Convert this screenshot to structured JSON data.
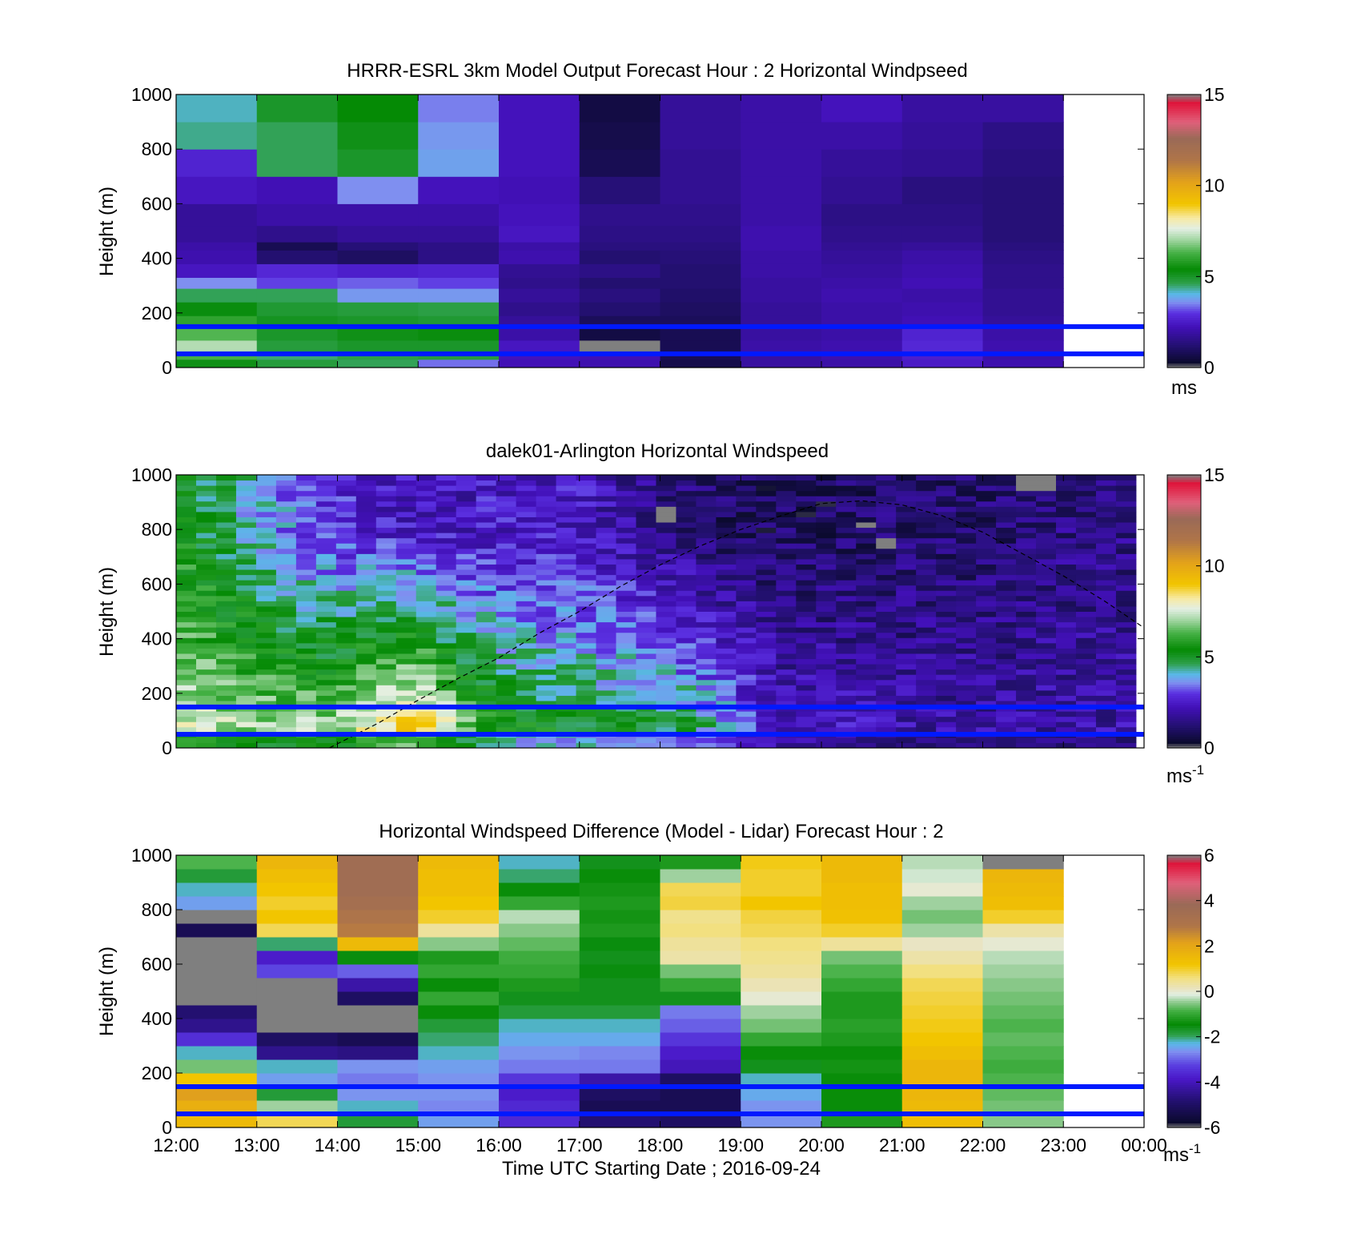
{
  "figure": {
    "xlabel": "Time UTC  Starting Date ; 2016-09-24",
    "xticks": [
      "12:00",
      "13:00",
      "14:00",
      "15:00",
      "16:00",
      "17:00",
      "18:00",
      "19:00",
      "20:00",
      "21:00",
      "22:00",
      "23:00",
      "00:00"
    ]
  },
  "chart_data": [
    {
      "type": "heatmap",
      "title": "HRRR-ESRL 3km Model Output   Forecast Hour : 2 Horizontal Windpseed",
      "ylabel": "Height (m)",
      "ylim": [
        0,
        1000
      ],
      "yticks": [
        "0",
        "200",
        "400",
        "600",
        "800",
        "1000"
      ],
      "colorbar": {
        "min": 0,
        "max": 15,
        "ticks": [
          "0",
          "5",
          "10",
          "15"
        ],
        "unit": "ms",
        "unit_sup": ""
      },
      "grid": false,
      "reference_lines_m": [
        50,
        150
      ],
      "reference_line_color": "#0019ff",
      "hours": [
        "12:00",
        "13:00",
        "14:00",
        "15:00",
        "16:00",
        "17:00",
        "18:00",
        "19:00",
        "20:00",
        "21:00",
        "22:00"
      ],
      "heights_m": [
        0,
        30,
        60,
        100,
        150,
        190,
        240,
        290,
        330,
        380,
        430,
        460,
        520,
        600,
        700,
        800,
        900,
        1000
      ],
      "values": [
        [
          5.2,
          6.3,
          7.2,
          6.4,
          6.0,
          5.3,
          4.6,
          3.6,
          2.4,
          2.1,
          2.0,
          1.8,
          1.8,
          2.4,
          2.7,
          4.4,
          4.2
        ],
        [
          4.8,
          4.5,
          4.8,
          5.0,
          5.1,
          4.9,
          4.6,
          3.1,
          2.8,
          1.2,
          0.8,
          1.6,
          2.0,
          2.2,
          4.6,
          4.6,
          5.0
        ],
        [
          4.6,
          4.7,
          5.0,
          5.2,
          5.0,
          4.8,
          3.7,
          3.3,
          2.6,
          1.0,
          1.3,
          1.8,
          2.0,
          3.6,
          5.0,
          5.2,
          5.4
        ],
        [
          3.4,
          4.8,
          5.0,
          5.3,
          4.9,
          4.7,
          3.7,
          3.1,
          2.7,
          1.5,
          1.5,
          1.8,
          2.0,
          2.3,
          3.8,
          3.7,
          3.5
        ],
        [
          2.2,
          2.3,
          2.4,
          2.0,
          1.8,
          1.6,
          1.8,
          1.6,
          1.7,
          2.1,
          2.0,
          2.4,
          2.3,
          2.2,
          2.3,
          2.3,
          2.3
        ],
        [
          2.1,
          2.2,
          0.0,
          0.6,
          0.9,
          1.2,
          1.4,
          1.2,
          1.5,
          1.2,
          1.4,
          1.5,
          1.6,
          1.3,
          0.8,
          0.7,
          0.6
        ],
        [
          0.7,
          0.8,
          0.8,
          0.8,
          0.9,
          1.0,
          1.1,
          1.2,
          1.2,
          1.3,
          1.4,
          1.5,
          1.6,
          1.7,
          1.7,
          1.8,
          1.8
        ],
        [
          1.9,
          1.9,
          2.0,
          1.9,
          1.8,
          1.8,
          1.9,
          1.9,
          2.0,
          2.0,
          2.1,
          2.1,
          2.0,
          2.0,
          2.0,
          2.0,
          2.0
        ],
        [
          2.0,
          2.1,
          2.1,
          2.0,
          2.0,
          2.0,
          2.1,
          2.0,
          1.9,
          1.8,
          1.7,
          1.6,
          1.5,
          1.7,
          1.8,
          2.0,
          2.3
        ],
        [
          2.5,
          2.6,
          2.8,
          2.7,
          2.2,
          2.1,
          2.0,
          2.2,
          2.1,
          2.0,
          1.8,
          1.6,
          1.5,
          1.4,
          1.7,
          1.8,
          1.9
        ],
        [
          2.1,
          2.0,
          2.1,
          2.0,
          1.8,
          1.7,
          1.7,
          1.6,
          1.6,
          1.5,
          1.4,
          1.3,
          1.3,
          1.3,
          1.4,
          1.5,
          1.9
        ]
      ]
    },
    {
      "type": "heatmap",
      "title": "dalek01-Arlington  Horizontal Windspeed",
      "ylabel": "Height (m)",
      "ylim": [
        0,
        1000
      ],
      "yticks": [
        "0",
        "200",
        "400",
        "600",
        "800",
        "1000"
      ],
      "colorbar": {
        "min": 0,
        "max": 15,
        "ticks": [
          "0",
          "5",
          "10",
          "15"
        ],
        "unit": "ms",
        "unit_sup": "-1"
      },
      "grid": false,
      "reference_lines_m": [
        50,
        150
      ],
      "reference_line_color": "#0019ff",
      "x_range_hours": [
        12,
        23.9
      ],
      "n_time_bins": 48,
      "n_height_bins": 52,
      "profile_anchor_hours": [
        12,
        13,
        14,
        14.6,
        15,
        15.5,
        16,
        17,
        18,
        18.5,
        19,
        19.5,
        20,
        21,
        22,
        23
      ],
      "profile_anchor_low_ms": [
        7.5,
        7.0,
        7.0,
        8.5,
        9.0,
        7.0,
        5.5,
        5.2,
        5.0,
        4.5,
        3.5,
        2.5,
        2.5,
        2.0,
        2.0,
        2.0
      ],
      "profile_anchor_high_ms": [
        5.5,
        4.0,
        2.8,
        2.5,
        2.4,
        2.3,
        2.5,
        2.4,
        1.5,
        1.2,
        1.0,
        1.0,
        1.0,
        1.2,
        1.2,
        1.5
      ],
      "missing_regions": [
        {
          "hour_range": [
            18.0,
            18.3
          ],
          "height_range": [
            820,
            880
          ]
        },
        {
          "hour_range": [
            18.9,
            19.0
          ],
          "height_range": [
            870,
            890
          ]
        },
        {
          "hour_range": [
            20.4,
            20.6
          ],
          "height_range": [
            810,
            830
          ]
        },
        {
          "hour_range": [
            20.7,
            20.9
          ],
          "height_range": [
            730,
            760
          ]
        },
        {
          "hour_range": [
            22.3,
            22.8
          ],
          "height_range": [
            950,
            1000
          ]
        },
        {
          "hour_range": [
            13.9,
            14.1
          ],
          "height_range": [
            740,
            760
          ]
        }
      ],
      "overlay_curve": {
        "style": "dashed",
        "hours": [
          13.9,
          14.5,
          15.0,
          15.5,
          16.0,
          16.5,
          17.0,
          17.5,
          18.0,
          18.5,
          19.0,
          19.5,
          20.0,
          20.5,
          21.0,
          21.5,
          22.0,
          22.5,
          23.0,
          23.5,
          24.0
        ],
        "heights_m": [
          0,
          90,
          175,
          255,
          330,
          420,
          500,
          590,
          670,
          740,
          800,
          850,
          895,
          905,
          890,
          850,
          790,
          710,
          630,
          540,
          440
        ]
      }
    },
    {
      "type": "heatmap",
      "title": "Horizontal Windspeed Difference (Model - Lidar) Forecast Hour : 2",
      "ylabel": "Height (m)",
      "ylim": [
        0,
        1000
      ],
      "yticks": [
        "0",
        "200",
        "400",
        "600",
        "800",
        "1000"
      ],
      "colorbar": {
        "min": -6,
        "max": 6,
        "ticks": [
          "-6",
          "-4",
          "-2",
          "0",
          "2",
          "4",
          "6"
        ],
        "unit": "ms",
        "unit_sup": "-1"
      },
      "grid": false,
      "reference_lines_m": [
        50,
        150
      ],
      "reference_line_color": "#0019ff",
      "hours": [
        "12:00",
        "13:00",
        "14:00",
        "15:00",
        "16:00",
        "17:00",
        "18:00",
        "19:00",
        "20:00",
        "21:00",
        "22:00"
      ],
      "heights_m": [
        0,
        50,
        100,
        150,
        200,
        250,
        300,
        350,
        400,
        450,
        500,
        550,
        600,
        650,
        700,
        750,
        800,
        850,
        900,
        950,
        1000
      ],
      "values": [
        [
          1.5,
          1.8,
          2.2,
          1.2,
          -0.6,
          -2.2,
          -3.5,
          -4.5,
          -4.8,
          "na",
          "na",
          "na",
          "na",
          "na",
          -5.2,
          "na",
          -2.5,
          -2.2,
          -1.8,
          -0.8
        ],
        [
          0.8,
          -0.4,
          -1.8,
          -2.5,
          -2.2,
          -4.5,
          -5.0,
          "na",
          "na",
          "na",
          "na",
          -3.2,
          -3.8,
          -2.0,
          0.8,
          1.2,
          1.0,
          1.2,
          1.4,
          1.6
        ],
        [
          -1.8,
          -2.2,
          -2.6,
          -2.8,
          -2.6,
          -4.6,
          -5.2,
          "na",
          "na",
          -5.0,
          -4.2,
          -3.0,
          -1.5,
          1.5,
          2.8,
          3.0,
          3.4,
          3.6,
          3.6,
          3.6
        ],
        [
          -2.5,
          -2.7,
          -2.6,
          -2.6,
          -2.5,
          -2.2,
          -2.0,
          -1.8,
          -1.4,
          -1.0,
          -1.4,
          -1.0,
          -1.2,
          -0.5,
          0.4,
          1.0,
          1.2,
          1.4,
          1.4,
          1.5
        ],
        [
          -3.6,
          -3.6,
          -3.8,
          -3.4,
          -2.8,
          -2.6,
          -2.4,
          -2.2,
          -1.8,
          -1.6,
          -1.2,
          -1.0,
          -0.9,
          -0.7,
          -0.5,
          -0.3,
          -1.0,
          -1.4,
          -2.0,
          -2.2
        ],
        [
          -4.8,
          -5.2,
          -5.0,
          -4.2,
          -2.8,
          -2.7,
          -2.4,
          -2.2,
          -1.8,
          -1.6,
          -1.6,
          -1.5,
          -1.6,
          -1.5,
          -1.2,
          -1.3,
          -1.2,
          -1.3,
          -1.4,
          -1.6
        ],
        [
          -5.0,
          -5.2,
          -5.2,
          -5.0,
          -4.0,
          -3.8,
          -3.4,
          -3.0,
          -2.8,
          -1.6,
          -1.0,
          -0.6,
          0.3,
          0.4,
          0.6,
          0.5,
          0.9,
          0.8,
          -0.4,
          -1.2
        ],
        [
          -2.6,
          -2.6,
          -2.4,
          -2.2,
          -1.6,
          -1.4,
          -1.0,
          -0.6,
          -0.4,
          0.0,
          0.2,
          0.4,
          0.5,
          0.6,
          0.8,
          0.9,
          1.2,
          1.0,
          1.0,
          1.1
        ],
        [
          -1.2,
          -1.4,
          -1.4,
          -1.4,
          -1.3,
          -1.4,
          -1.2,
          -1.1,
          -1.2,
          -1.2,
          -1.0,
          -0.8,
          -0.6,
          0.4,
          1.0,
          1.3,
          1.4,
          1.4,
          1.5,
          1.5
        ],
        [
          1.4,
          1.5,
          1.6,
          1.6,
          1.6,
          1.4,
          1.2,
          1.1,
          1.0,
          0.9,
          0.8,
          0.6,
          0.3,
          0.1,
          -0.4,
          -0.6,
          -0.4,
          0.0,
          -0.2,
          -0.3
        ],
        [
          -0.5,
          -0.6,
          -0.7,
          -0.8,
          -0.9,
          -0.8,
          -0.7,
          -0.8,
          -0.7,
          -0.6,
          -0.5,
          -0.4,
          -0.3,
          0.0,
          0.3,
          1.0,
          1.4,
          1.5,
          1.6,
          "na"
        ]
      ]
    }
  ],
  "colormaps": {
    "speed": [
      [
        0.0,
        "#7f7f7f"
      ],
      [
        0.02,
        "#0b0a2e"
      ],
      [
        0.08,
        "#231070"
      ],
      [
        0.15,
        "#4210b8"
      ],
      [
        0.2,
        "#5a2fe0"
      ],
      [
        0.24,
        "#7f8ff0"
      ],
      [
        0.27,
        "#5ab8e8"
      ],
      [
        0.31,
        "#2ea04a"
      ],
      [
        0.36,
        "#058a05"
      ],
      [
        0.42,
        "#44b044"
      ],
      [
        0.47,
        "#a3d6a3"
      ],
      [
        0.51,
        "#e3efe3"
      ],
      [
        0.55,
        "#f7e9a0"
      ],
      [
        0.6,
        "#f2c500"
      ],
      [
        0.68,
        "#e3a21a"
      ],
      [
        0.76,
        "#b07548"
      ],
      [
        0.84,
        "#9a6a57"
      ],
      [
        0.9,
        "#e0607a"
      ],
      [
        0.97,
        "#e0143a"
      ],
      [
        1.0,
        "#7f7f7f"
      ]
    ],
    "diff": [
      [
        0.0,
        "#7f7f7f"
      ],
      [
        0.02,
        "#0b0a2e"
      ],
      [
        0.1,
        "#231070"
      ],
      [
        0.18,
        "#4a18c8"
      ],
      [
        0.23,
        "#5a3fe0"
      ],
      [
        0.28,
        "#7f8ff0"
      ],
      [
        0.31,
        "#5ab8e8"
      ],
      [
        0.34,
        "#2ea04a"
      ],
      [
        0.38,
        "#058a05"
      ],
      [
        0.43,
        "#44b044"
      ],
      [
        0.46,
        "#8cc98c"
      ],
      [
        0.49,
        "#e3efe3"
      ],
      [
        0.51,
        "#e9e3c0"
      ],
      [
        0.55,
        "#f2e080"
      ],
      [
        0.6,
        "#f2c500"
      ],
      [
        0.68,
        "#e3a21a"
      ],
      [
        0.74,
        "#b07548"
      ],
      [
        0.82,
        "#9a6a57"
      ],
      [
        0.9,
        "#e0607a"
      ],
      [
        0.97,
        "#e0143a"
      ],
      [
        1.0,
        "#7f7f7f"
      ]
    ]
  }
}
